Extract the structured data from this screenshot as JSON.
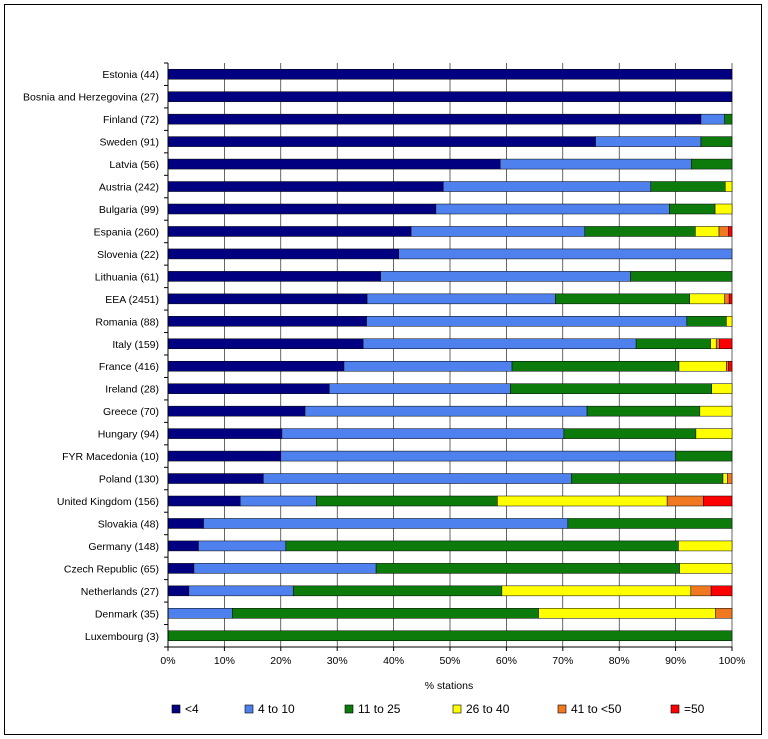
{
  "chart_data": {
    "type": "bar",
    "orientation": "horizontal",
    "stacked": "percent",
    "xlabel": "% stations",
    "xlim": [
      0,
      100
    ],
    "xticks": [
      "0%",
      "10%",
      "20%",
      "30%",
      "40%",
      "50%",
      "60%",
      "70%",
      "80%",
      "90%",
      "100%"
    ],
    "grid": "vertical",
    "legend_position": "bottom",
    "categories": [
      "Estonia (44)",
      "Bosnia and Herzegovina (27)",
      "Finland (72)",
      "Sweden (91)",
      "Latvia (56)",
      "Austria (242)",
      "Bulgaria (99)",
      "Espania (260)",
      "Slovenia (22)",
      "Lithuania (61)",
      "EEA (2451)",
      "Romania (88)",
      "Italy (159)",
      "France (416)",
      "Ireland (28)",
      "Greece (70)",
      "Hungary (94)",
      "FYR Macedonia (10)",
      "Poland (130)",
      "United Kingdom (156)",
      "Slovakia (48)",
      "Germany (148)",
      "Czech Republic (65)",
      "Netherlands (27)",
      "Denmark (35)",
      "Luxembourg (3)"
    ],
    "series": [
      {
        "name": "<4",
        "color": "#000080",
        "values": [
          100,
          100,
          94.5,
          75.8,
          58.9,
          48.8,
          47.5,
          43.1,
          40.9,
          37.7,
          35.3,
          35.2,
          34.6,
          31.2,
          28.6,
          24.3,
          20.2,
          20,
          16.9,
          12.8,
          6.3,
          5.4,
          4.6,
          3.7,
          0,
          0
        ]
      },
      {
        "name": "4 to 10",
        "color": "#4f81ee",
        "values": [
          0,
          0,
          4.2,
          18.7,
          33.9,
          36.8,
          41.4,
          30.8,
          59.1,
          44.3,
          33.4,
          56.8,
          48.4,
          29.8,
          32.1,
          50,
          50,
          70,
          54.6,
          13.5,
          64.6,
          15.5,
          32.3,
          18.5,
          11.4,
          0
        ]
      },
      {
        "name": "11 to 25",
        "color": "#0c7b0c",
        "values": [
          0,
          0,
          1.3,
          5.5,
          7.2,
          13.2,
          8.1,
          19.6,
          0,
          18,
          23.8,
          7,
          13.2,
          29.6,
          35.7,
          20,
          23.4,
          10,
          26.9,
          32.1,
          29.1,
          69.6,
          53.8,
          37,
          54.3,
          100
        ]
      },
      {
        "name": "26 to 40",
        "color": "#ffff00",
        "values": [
          0,
          0,
          0,
          0,
          0,
          1.2,
          3,
          4.2,
          0,
          0,
          6.2,
          1,
          1,
          8.4,
          3.6,
          5.7,
          6.4,
          0,
          0.8,
          30.1,
          0,
          9.5,
          9.3,
          33.5,
          31.4,
          0
        ]
      },
      {
        "name": "41 to <50",
        "color": "#f07820",
        "values": [
          0,
          0,
          0,
          0,
          0,
          0,
          0,
          1.7,
          0,
          0,
          0.8,
          0,
          0.6,
          0.4,
          0,
          0,
          0,
          0,
          0.8,
          6.4,
          0,
          0,
          0,
          3.6,
          2.9,
          0
        ]
      },
      {
        "name": "=50",
        "color": "#ff0000",
        "values": [
          0,
          0,
          0,
          0,
          0,
          0,
          0,
          0.6,
          0,
          0,
          0.5,
          0,
          2.2,
          0.6,
          0,
          0,
          0,
          0,
          0,
          5.1,
          0,
          0,
          0,
          3.7,
          0,
          0
        ]
      }
    ]
  }
}
